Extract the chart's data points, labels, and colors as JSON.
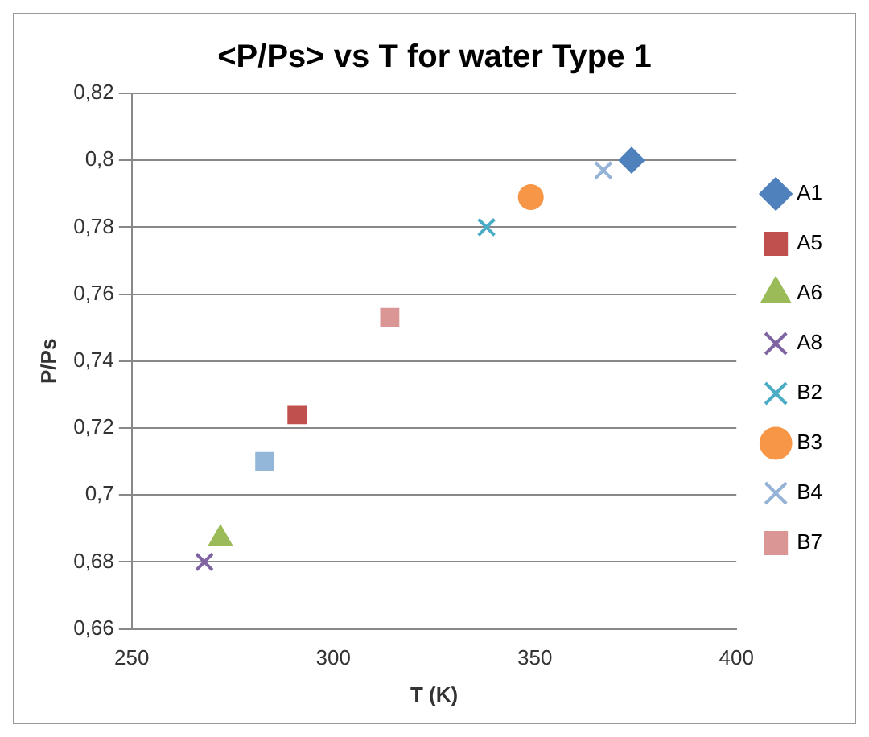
{
  "chart_data": {
    "type": "scatter",
    "title": "<P/Ps> vs T for water Type 1",
    "xlabel": "T (K)",
    "ylabel": "P/Ps",
    "xlim": [
      250,
      400
    ],
    "xticks": [
      250,
      300,
      350,
      400
    ],
    "ylim": [
      0.66,
      0.82
    ],
    "yticks": [
      {
        "value": 0.66,
        "label": "0,66"
      },
      {
        "value": 0.68,
        "label": "0,68"
      },
      {
        "value": 0.7,
        "label": "0,7"
      },
      {
        "value": 0.72,
        "label": "0,72"
      },
      {
        "value": 0.74,
        "label": "0,74"
      },
      {
        "value": 0.76,
        "label": "0,76"
      },
      {
        "value": 0.78,
        "label": "0,78"
      },
      {
        "value": 0.8,
        "label": "0,8"
      },
      {
        "value": 0.82,
        "label": "0,82"
      }
    ],
    "grid": "y",
    "legend": "right",
    "series": [
      {
        "name": "A1",
        "color": "#4f81bd",
        "marker": "diamond",
        "x": [
          374
        ],
        "values": [
          0.8
        ]
      },
      {
        "name": "A5",
        "color": "#c0504d",
        "marker": "square",
        "x": [
          291
        ],
        "values": [
          0.724
        ]
      },
      {
        "name": "A6",
        "color": "#9bbb59",
        "marker": "triangle",
        "x": [
          272
        ],
        "values": [
          0.687
        ]
      },
      {
        "name": "A8",
        "color": "#8064a2",
        "marker": "cross",
        "x": [
          268
        ],
        "values": [
          0.68
        ]
      },
      {
        "name": "B2",
        "color": "#4bacc6",
        "marker": "cross",
        "x": [
          338
        ],
        "values": [
          0.78
        ]
      },
      {
        "name": "B3",
        "color": "#f79646",
        "marker": "circle",
        "x": [
          349
        ],
        "values": [
          0.789
        ]
      },
      {
        "name": "B4",
        "color": "#95b3d7",
        "marker": "cross",
        "x": [
          367
        ],
        "values": [
          0.797
        ]
      },
      {
        "name": "B7",
        "color": "#d99694",
        "marker": "square",
        "x": [
          314
        ],
        "values": [
          0.753
        ]
      },
      {
        "color": "#93b7d8",
        "marker": "square",
        "x": [
          283
        ],
        "values": [
          0.71
        ]
      }
    ]
  }
}
